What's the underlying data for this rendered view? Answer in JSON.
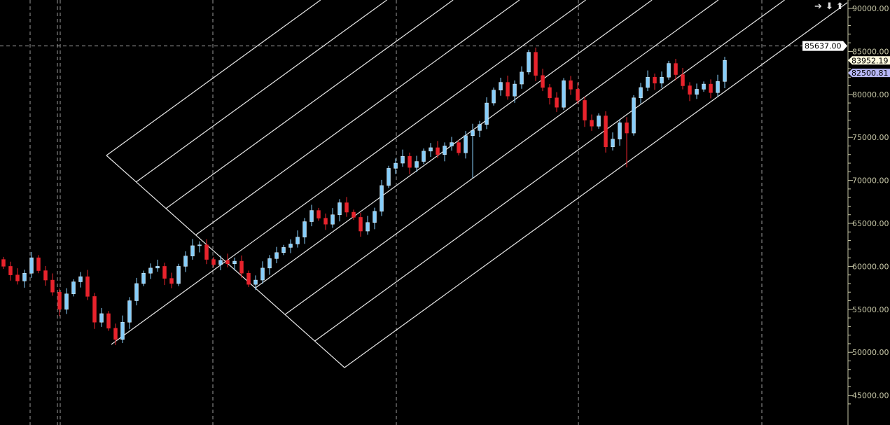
{
  "chart_data": {
    "type": "candlestick",
    "yaxis": {
      "ticks": [
        90000,
        85000,
        80000,
        75000,
        70000,
        65000,
        60000,
        55000,
        50000,
        45000
      ],
      "tick_format": "2 decimals",
      "ylim": [
        43800,
        91000
      ],
      "position": "right"
    },
    "grid": {
      "vertical": "dashed",
      "horizontal": "none"
    },
    "first_open": 60800,
    "closes": [
      60000,
      59000,
      58300,
      59200,
      61000,
      59500,
      58400,
      57000,
      55000,
      56800,
      58200,
      58800,
      56500,
      53500,
      54500,
      52800,
      51500,
      53500,
      56000,
      58000,
      59200,
      59800,
      60000,
      58600,
      58000,
      60000,
      61200,
      62400,
      62500,
      60800,
      60200,
      60700,
      60300,
      60600,
      59200,
      57900,
      58400,
      59800,
      60900,
      61600,
      62200,
      62600,
      63400,
      65200,
      66500,
      65600,
      64900,
      66000,
      67400,
      66300,
      65700,
      64100,
      65100,
      66400,
      69400,
      71400,
      72000,
      72800,
      71500,
      72200,
      73400,
      73800,
      73000,
      74000,
      74400,
      73200,
      75200,
      75800,
      76500,
      79000,
      80500,
      81400,
      79800,
      81200,
      82600,
      84900,
      82200,
      80800,
      79600,
      78500,
      81600,
      80600,
      79300,
      77000,
      76300,
      77500,
      73900,
      74800,
      76700,
      75500,
      79600,
      80800,
      82000,
      81300,
      82000,
      83600,
      82300,
      81000,
      80000,
      80600,
      81200,
      80200,
      81500,
      83952.19
    ],
    "long_wick_lows": {
      "67": 70300,
      "89": 71500
    },
    "price_labels": [
      {
        "value": "85637.00",
        "role": "crosshair",
        "color": "#ffffff"
      },
      {
        "value": "83952.19",
        "role": "last price",
        "color": "#fffbe0"
      },
      {
        "value": "82500.81",
        "role": "reference",
        "color": "#b8b8f8"
      }
    ],
    "crosshair_price": 85637,
    "reference_price": 82500.81,
    "colors": {
      "up": "#87cefa",
      "down": "#e8232c",
      "lines": "#e6e6e6",
      "axis": "#c8c8a8",
      "background": "#000000"
    }
  },
  "toolbar": {
    "icons": [
      "arrow-right-icon",
      "arrow-down-icon",
      "arrow-up-icon"
    ],
    "labels": [
      "➔",
      "⬇",
      "⬆"
    ]
  }
}
